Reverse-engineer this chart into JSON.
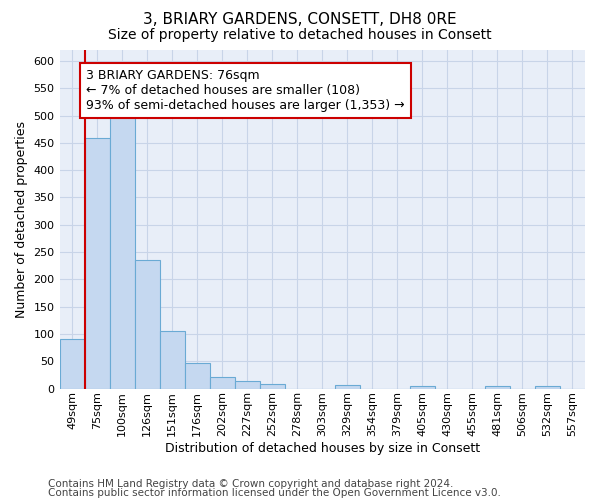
{
  "title": "3, BRIARY GARDENS, CONSETT, DH8 0RE",
  "subtitle": "Size of property relative to detached houses in Consett",
  "xlabel": "Distribution of detached houses by size in Consett",
  "ylabel": "Number of detached properties",
  "footnote1": "Contains HM Land Registry data © Crown copyright and database right 2024.",
  "footnote2": "Contains public sector information licensed under the Open Government Licence v3.0.",
  "annotation_line1": "3 BRIARY GARDENS: 76sqm",
  "annotation_line2": "← 7% of detached houses are smaller (108)",
  "annotation_line3": "93% of semi-detached houses are larger (1,353) →",
  "bar_labels": [
    "49sqm",
    "75sqm",
    "100sqm",
    "126sqm",
    "151sqm",
    "176sqm",
    "202sqm",
    "227sqm",
    "252sqm",
    "278sqm",
    "303sqm",
    "329sqm",
    "354sqm",
    "379sqm",
    "405sqm",
    "430sqm",
    "455sqm",
    "481sqm",
    "506sqm",
    "532sqm",
    "557sqm"
  ],
  "bar_values": [
    90,
    458,
    500,
    235,
    105,
    47,
    21,
    14,
    8,
    0,
    0,
    6,
    0,
    0,
    5,
    0,
    0,
    5,
    0,
    5,
    0
  ],
  "bar_color": "#c5d8f0",
  "bar_edge_color": "#6aaad4",
  "annotation_box_color": "#cc0000",
  "red_line_x": 1,
  "ylim": [
    0,
    620
  ],
  "yticks": [
    0,
    50,
    100,
    150,
    200,
    250,
    300,
    350,
    400,
    450,
    500,
    550,
    600
  ],
  "plot_bg_color": "#e8eef8",
  "bg_color": "#ffffff",
  "grid_color": "#c8d4e8",
  "title_fontsize": 11,
  "subtitle_fontsize": 10,
  "axis_label_fontsize": 9,
  "tick_fontsize": 8,
  "annotation_fontsize": 9,
  "footnote_fontsize": 7.5
}
